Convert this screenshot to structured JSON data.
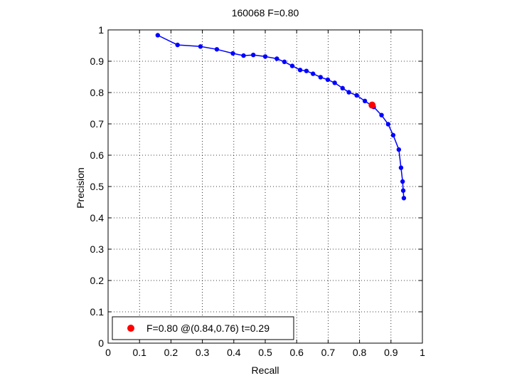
{
  "chart_data": {
    "type": "line",
    "title": "160068 F=0.80",
    "xlabel": "Recall",
    "ylabel": "Precision",
    "xlim": [
      0,
      1
    ],
    "ylim": [
      0,
      1
    ],
    "xticks": [
      0,
      0.1,
      0.2,
      0.3,
      0.4,
      0.5,
      0.6,
      0.7,
      0.8,
      0.9,
      1
    ],
    "xtick_labels": [
      "0",
      "0.1",
      "0.2",
      "0.3",
      "0.4",
      "0.5",
      "0.6",
      "0.7",
      "0.8",
      "0.9",
      "1"
    ],
    "yticks": [
      0,
      0.1,
      0.2,
      0.3,
      0.4,
      0.5,
      0.6,
      0.7,
      0.8,
      0.9,
      1
    ],
    "ytick_labels": [
      "0",
      "0.1",
      "0.2",
      "0.3",
      "0.4",
      "0.5",
      "0.6",
      "0.7",
      "0.8",
      "0.9",
      "1"
    ],
    "grid": true,
    "legend_position": "bottom-left",
    "legend_label": "F=0.80 @(0.84,0.76) t=0.29",
    "series_color": "#0000ff",
    "marker_color": "#ff0000",
    "series": [
      {
        "x": [
          0.158,
          0.221,
          0.294,
          0.346,
          0.397,
          0.431,
          0.462,
          0.5,
          0.537,
          0.561,
          0.586,
          0.611,
          0.631,
          0.652,
          0.676,
          0.699,
          0.721,
          0.746,
          0.766,
          0.791,
          0.817,
          0.845,
          0.87,
          0.891,
          0.907,
          0.925,
          0.932,
          0.937,
          0.939,
          0.941
        ],
        "y": [
          0.983,
          0.952,
          0.947,
          0.938,
          0.925,
          0.918,
          0.92,
          0.915,
          0.908,
          0.898,
          0.885,
          0.872,
          0.869,
          0.86,
          0.849,
          0.841,
          0.831,
          0.814,
          0.801,
          0.791,
          0.773,
          0.754,
          0.728,
          0.699,
          0.664,
          0.618,
          0.56,
          0.516,
          0.487,
          0.463
        ]
      }
    ],
    "highlight_point": {
      "x": 0.84,
      "y": 0.76
    }
  }
}
